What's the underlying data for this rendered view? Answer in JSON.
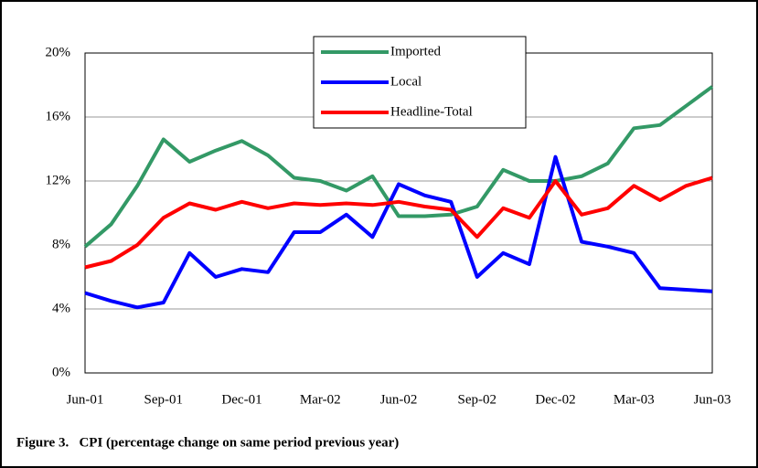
{
  "chart_data": {
    "type": "line",
    "title": "Figure 3.   CPI (percentage change on same period previous year)",
    "categories": [
      "Jun-01",
      null,
      null,
      "Sep-01",
      null,
      null,
      "Dec-01",
      null,
      null,
      "Mar-02",
      null,
      null,
      "Jun-02",
      null,
      null,
      "Sep-02",
      null,
      null,
      "Dec-02",
      null,
      null,
      "Mar-03",
      null,
      null,
      "Jun-03"
    ],
    "series": [
      {
        "name": "Imported",
        "color": "#339966",
        "values": [
          7.9,
          9.3,
          11.7,
          14.6,
          13.2,
          13.9,
          14.5,
          13.6,
          12.2,
          12.0,
          11.4,
          12.3,
          9.8,
          9.8,
          9.9,
          10.4,
          12.7,
          12.0,
          12.0,
          12.3,
          13.1,
          15.3,
          15.5,
          16.7,
          17.9
        ]
      },
      {
        "name": "Local",
        "color": "#0000ff",
        "values": [
          5.0,
          4.5,
          4.1,
          4.4,
          7.5,
          6.0,
          6.5,
          6.3,
          8.8,
          8.8,
          9.9,
          8.5,
          11.8,
          11.1,
          10.7,
          6.0,
          7.5,
          6.8,
          13.5,
          8.2,
          7.9,
          7.5,
          5.3,
          5.2,
          5.1
        ]
      },
      {
        "name": "Headline-Total",
        "color": "#ff0000",
        "values": [
          6.6,
          7.0,
          8.0,
          9.7,
          10.6,
          10.2,
          10.7,
          10.3,
          10.6,
          10.5,
          10.6,
          10.5,
          10.7,
          10.4,
          10.2,
          8.5,
          10.3,
          9.7,
          12.0,
          9.9,
          10.3,
          11.7,
          10.8,
          11.7,
          12.2
        ]
      }
    ],
    "ylim": [
      0,
      20
    ],
    "yticks": [
      {
        "value": 0,
        "label": "0%"
      },
      {
        "value": 4,
        "label": "4%"
      },
      {
        "value": 8,
        "label": "8%"
      },
      {
        "value": 12,
        "label": "12%"
      },
      {
        "value": 16,
        "label": "16%"
      },
      {
        "value": 20,
        "label": "20%"
      }
    ],
    "grid": true,
    "legend": "upper center"
  }
}
